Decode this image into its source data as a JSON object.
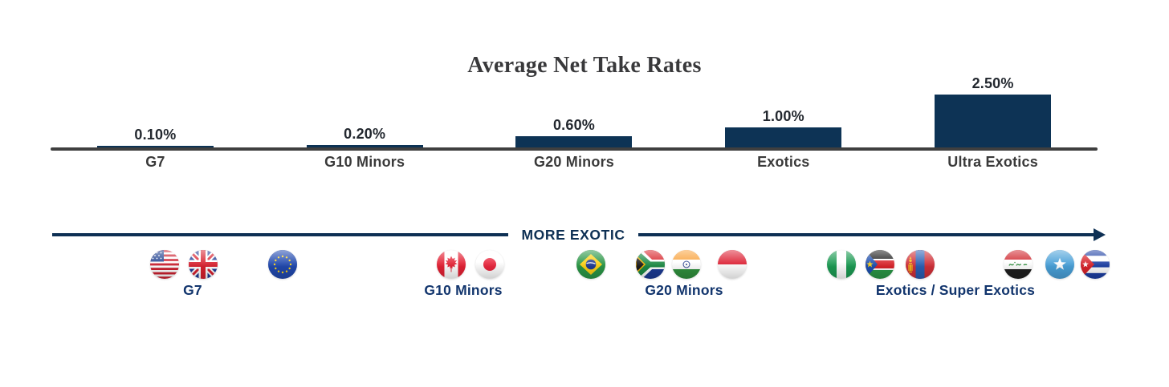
{
  "title": "Average Net Take Rates",
  "chart_data": {
    "type": "bar",
    "title": "Average Net Take Rates",
    "categories": [
      "G7",
      "G10 Minors",
      "G20 Minors",
      "Exotics",
      "Ultra Exotics"
    ],
    "values": [
      0.1,
      0.2,
      0.6,
      1.0,
      2.5
    ],
    "display_values": [
      "0.10%",
      "0.20%",
      "0.60%",
      "1.00%",
      "2.50%"
    ],
    "unit": "%",
    "ylabel": "",
    "xlabel": "",
    "ylim": [
      0,
      2.5
    ],
    "grid": false,
    "legend": "none",
    "bar_color": "#0d3355",
    "axis_color": "#3f3f3f",
    "value_label_color": "#23282f",
    "category_label_color": "#3a3a3a"
  },
  "exotic_axis": {
    "label": "MORE EXOTIC",
    "direction": "right",
    "color": "#0e3054",
    "groups": [
      {
        "label": "G7",
        "flags": [
          "usa",
          "united-kingdom",
          "european-union"
        ]
      },
      {
        "label": "G10 Minors",
        "flags": [
          "canada",
          "japan"
        ]
      },
      {
        "label": "G20 Minors",
        "flags": [
          "brazil",
          "south-africa",
          "india",
          "indonesia"
        ]
      },
      {
        "label": "Exotics / Super Exotics",
        "flags": [
          "nigeria",
          "south-sudan",
          "mongolia",
          "iraq",
          "somalia",
          "cuba"
        ]
      }
    ],
    "group_label_color": "#12356d"
  }
}
